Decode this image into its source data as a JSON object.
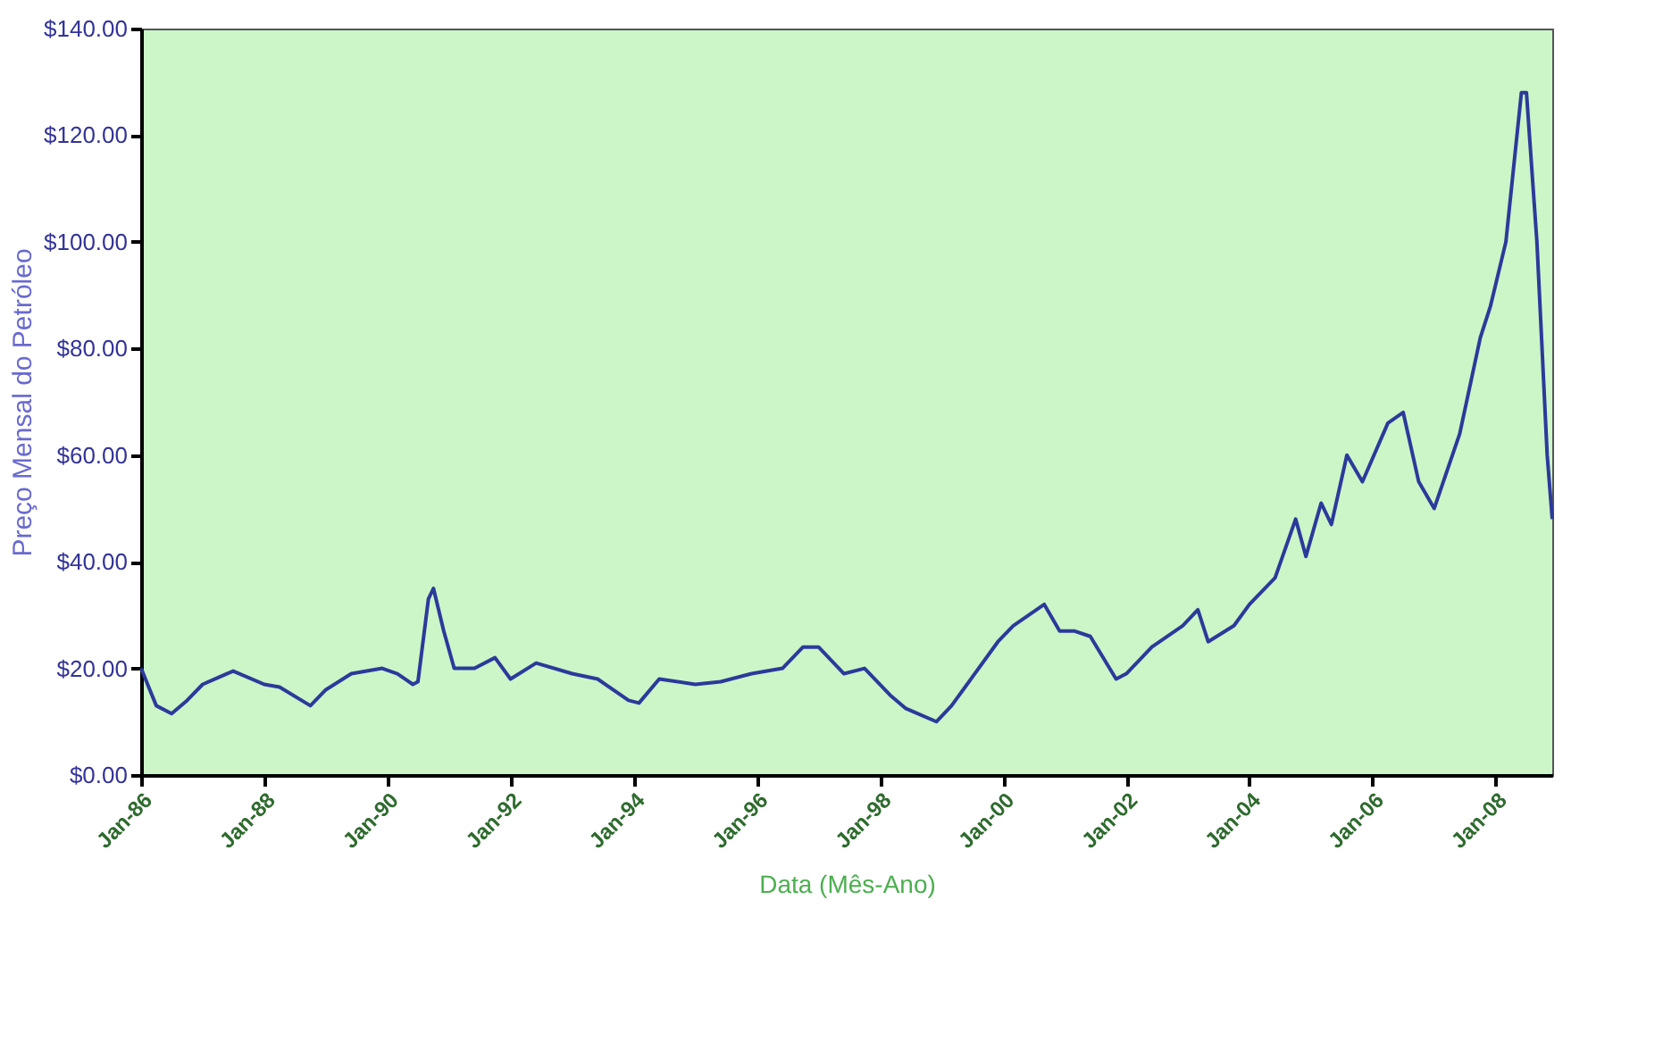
{
  "chart_data": {
    "type": "line",
    "xlabel": "Data (Mês-Ano)",
    "ylabel": "Preço Mensal do Petróleo",
    "x": [
      "1986-01",
      "1986-04",
      "1986-07",
      "1986-10",
      "1987-01",
      "1987-07",
      "1988-01",
      "1988-04",
      "1988-10",
      "1989-01",
      "1989-06",
      "1989-12",
      "1990-03",
      "1990-06",
      "1990-07",
      "1990-09",
      "1990-10",
      "1990-12",
      "1991-02",
      "1991-06",
      "1991-10",
      "1992-01",
      "1992-06",
      "1993-01",
      "1993-06",
      "1993-12",
      "1994-02",
      "1994-06",
      "1995-01",
      "1995-06",
      "1995-12",
      "1996-06",
      "1996-10",
      "1997-01",
      "1997-06",
      "1997-10",
      "1998-03",
      "1998-06",
      "1998-12",
      "1999-03",
      "1999-06",
      "1999-12",
      "2000-03",
      "2000-06",
      "2000-09",
      "2000-12",
      "2001-03",
      "2001-06",
      "2001-11",
      "2002-01",
      "2002-06",
      "2002-12",
      "2003-03",
      "2003-05",
      "2003-10",
      "2004-01",
      "2004-06",
      "2004-10",
      "2004-12",
      "2005-03",
      "2005-05",
      "2005-08",
      "2005-11",
      "2006-04",
      "2006-07",
      "2006-10",
      "2007-01",
      "2007-06",
      "2007-10",
      "2007-12",
      "2008-03",
      "2008-06",
      "2008-07",
      "2008-09",
      "2008-11",
      "2008-12"
    ],
    "series": [
      {
        "color": "#2b3a9a",
        "values": [
          20,
          13,
          11.5,
          14,
          17,
          19.5,
          17,
          16.5,
          13,
          16,
          19,
          20,
          19,
          17,
          17.5,
          33,
          35,
          27,
          20,
          20,
          22,
          18,
          21,
          19,
          18,
          14,
          13.5,
          18,
          17,
          17.5,
          19,
          20,
          24,
          24,
          19,
          20,
          15,
          12.5,
          10,
          13,
          17,
          25,
          28,
          30,
          32,
          27,
          27,
          26,
          18,
          19,
          24,
          28,
          31,
          25,
          28,
          32,
          37,
          48,
          41,
          51,
          47,
          60,
          55,
          66,
          68,
          55,
          50,
          64,
          82,
          88,
          100,
          128,
          128,
          100,
          60,
          48
        ]
      }
    ],
    "xlim": [
      "1986-01",
      "2008-12"
    ],
    "xticks": [
      {
        "value": "1986-01",
        "label": "Jan-86"
      },
      {
        "value": "1988-01",
        "label": "Jan-88"
      },
      {
        "value": "1990-01",
        "label": "Jan-90"
      },
      {
        "value": "1992-01",
        "label": "Jan-92"
      },
      {
        "value": "1994-01",
        "label": "Jan-94"
      },
      {
        "value": "1996-01",
        "label": "Jan-96"
      },
      {
        "value": "1998-01",
        "label": "Jan-98"
      },
      {
        "value": "2000-01",
        "label": "Jan-00"
      },
      {
        "value": "2002-01",
        "label": "Jan-02"
      },
      {
        "value": "2004-01",
        "label": "Jan-04"
      },
      {
        "value": "2006-01",
        "label": "Jan-06"
      },
      {
        "value": "2008-01",
        "label": "Jan-08"
      }
    ],
    "ylim": [
      0,
      140
    ],
    "yticks": [
      {
        "value": 0,
        "label": "$0.00"
      },
      {
        "value": 20,
        "label": "$20.00"
      },
      {
        "value": 40,
        "label": "$40.00"
      },
      {
        "value": 60,
        "label": "$60.00"
      },
      {
        "value": 80,
        "label": "$80.00"
      },
      {
        "value": 100,
        "label": "$100.00"
      },
      {
        "value": 120,
        "label": "$120.00"
      },
      {
        "value": 140,
        "label": "$140.00"
      }
    ],
    "grid": false,
    "marker": "none",
    "line_style": "solid"
  }
}
